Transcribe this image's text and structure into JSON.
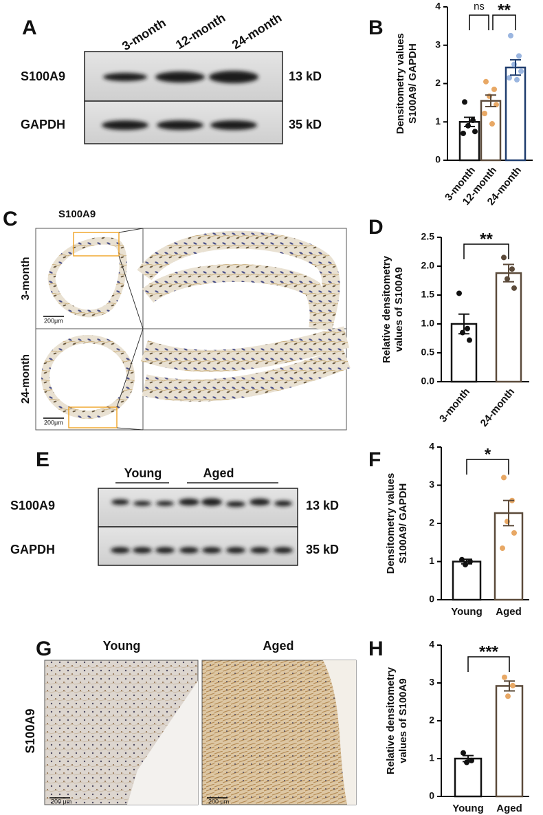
{
  "panels": {
    "A": {
      "letter": "A",
      "lanes": [
        "3-month",
        "12-month",
        "24-month"
      ],
      "rows": [
        {
          "protein": "S100A9",
          "size": "13 kD"
        },
        {
          "protein": "GAPDH",
          "size": "35 kD"
        }
      ]
    },
    "C": {
      "letter": "C",
      "title": "S100A9",
      "rows": [
        "3-month",
        "24-month"
      ],
      "scale_bars": [
        "200μm",
        "200μm"
      ]
    },
    "E": {
      "letter": "E",
      "groups": [
        "Young",
        "Aged"
      ],
      "rows": [
        {
          "protein": "S100A9",
          "size": "13 kD"
        },
        {
          "protein": "GAPDH",
          "size": "35 kD"
        }
      ]
    },
    "G": {
      "letter": "G",
      "columns": [
        "Young",
        "Aged"
      ],
      "row": "S100A9",
      "scale_bars": [
        "200 μm",
        "200 μm"
      ]
    }
  },
  "chart_data": [
    {
      "type": "bar",
      "panel_label": "B",
      "ylabel": [
        "Densitometry values",
        "S100A9/ GAPDH"
      ],
      "categories": [
        "3-month",
        "12-month",
        "24-month"
      ],
      "values": [
        1.0,
        1.55,
        2.42
      ],
      "errors": [
        0.12,
        0.15,
        0.2
      ],
      "points": [
        [
          1.52,
          1.04,
          0.9,
          0.75,
          0.7
        ],
        [
          2.05,
          1.85,
          1.67,
          1.45,
          1.22,
          0.95
        ],
        [
          3.25,
          2.72,
          2.5,
          2.32,
          2.15,
          2.1
        ]
      ],
      "colors": [
        "#111111",
        "#5b4a3a",
        "#1f3d6e"
      ],
      "point_colors": [
        "#111111",
        "#e8a865",
        "#9bb6e0"
      ],
      "ylim": [
        0,
        4
      ],
      "yticks": [
        0,
        1,
        2,
        3,
        4
      ],
      "annotations": [
        {
          "text": "ns",
          "between": [
            "3-month",
            "12-month"
          ]
        },
        {
          "text": "**",
          "between": [
            "12-month",
            "24-month"
          ]
        }
      ]
    },
    {
      "type": "bar",
      "panel_label": "D",
      "ylabel": [
        "Relative densitometry",
        "values of S100A9"
      ],
      "categories": [
        "3-month",
        "24-month"
      ],
      "values": [
        1.0,
        1.88
      ],
      "errors": [
        0.17,
        0.15
      ],
      "points": [
        [
          1.53,
          0.92,
          0.85,
          0.72
        ],
        [
          2.15,
          1.95,
          1.78,
          1.62
        ]
      ],
      "colors": [
        "#111111",
        "#5b4a3a"
      ],
      "point_colors": [
        "#111111",
        "#5b4a3a"
      ],
      "ylim": [
        0,
        2.5
      ],
      "yticks": [
        {
          "value": 0,
          "label": "0.0"
        },
        0.5,
        {
          "value": 1,
          "label": "1.0"
        },
        1.5,
        {
          "value": 2,
          "label": "2.0"
        },
        2.5
      ],
      "annotations": [
        {
          "text": "**",
          "between": [
            "3-month",
            "24-month"
          ]
        }
      ]
    },
    {
      "type": "bar",
      "panel_label": "F",
      "ylabel": [
        "Densitometry values",
        "S100A9/ GAPDH"
      ],
      "categories": [
        "Young",
        "Aged"
      ],
      "values": [
        1.0,
        2.27
      ],
      "errors": [
        0.06,
        0.33
      ],
      "points": [
        [
          1.05,
          1.0,
          0.92
        ],
        [
          3.2,
          2.6,
          2.05,
          1.75,
          1.35
        ]
      ],
      "colors": [
        "#111111",
        "#5b4a3a"
      ],
      "point_colors": [
        "#111111",
        "#e8a865"
      ],
      "ylim": [
        0,
        4
      ],
      "yticks": [
        0,
        1,
        2,
        3,
        4
      ],
      "annotations": [
        {
          "text": "*",
          "between": [
            "Young",
            "Aged"
          ]
        }
      ]
    },
    {
      "type": "bar",
      "panel_label": "H",
      "ylabel": [
        "Relative densitometry",
        "values of S100A9"
      ],
      "categories": [
        "Young",
        "Aged"
      ],
      "values": [
        1.0,
        2.92
      ],
      "errors": [
        0.08,
        0.13
      ],
      "points": [
        [
          1.15,
          0.95,
          0.9
        ],
        [
          3.15,
          2.93,
          2.65
        ]
      ],
      "colors": [
        "#111111",
        "#5b4a3a"
      ],
      "point_colors": [
        "#111111",
        "#e8a865"
      ],
      "ylim": [
        0,
        4
      ],
      "yticks": [
        0,
        1,
        2,
        3,
        4
      ],
      "annotations": [
        {
          "text": "***",
          "between": [
            "Young",
            "Aged"
          ]
        }
      ]
    }
  ]
}
